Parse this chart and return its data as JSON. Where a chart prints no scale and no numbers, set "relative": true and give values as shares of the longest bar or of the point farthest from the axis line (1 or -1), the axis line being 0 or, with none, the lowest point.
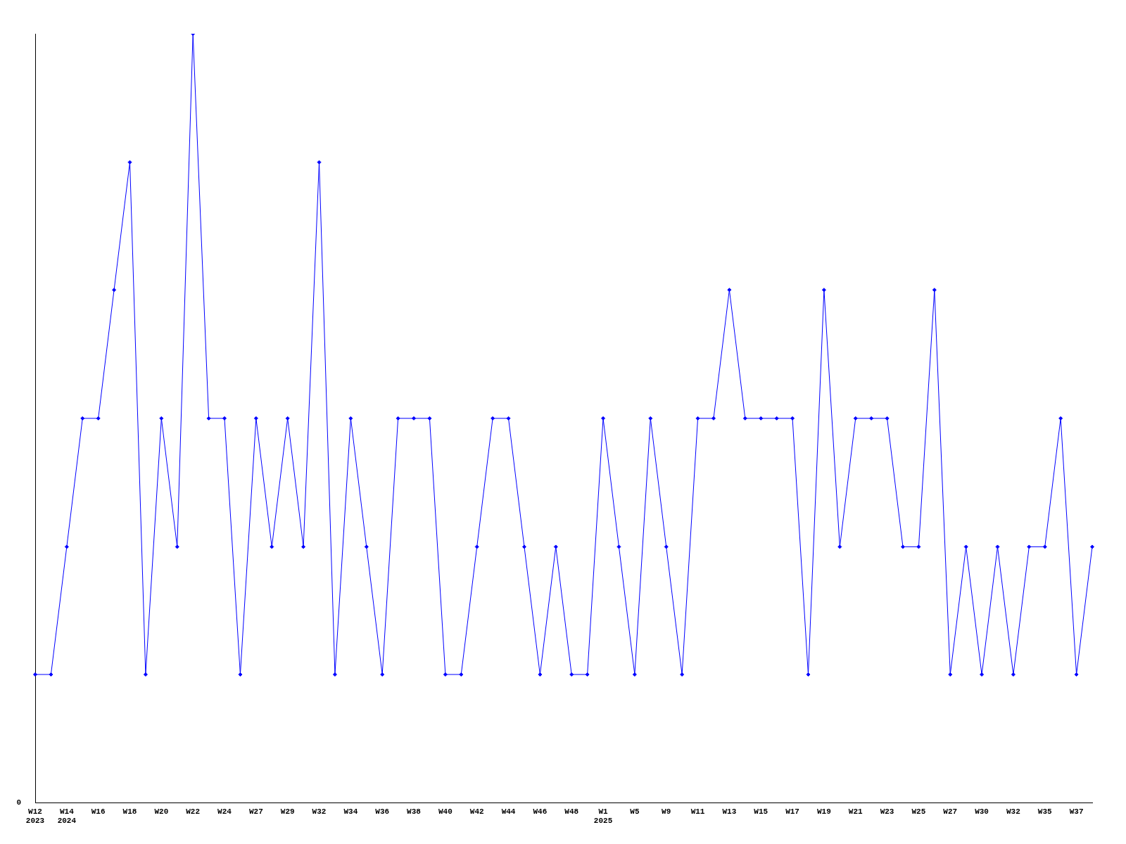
{
  "chart_data": {
    "type": "line",
    "relative": true,
    "categories": [
      "W12\n2023",
      null,
      "W14\n2024",
      null,
      "W16",
      null,
      "W18",
      null,
      "W20",
      null,
      "W22",
      null,
      "W24",
      null,
      "W27",
      null,
      "W29",
      null,
      "W32",
      null,
      "W34",
      null,
      "W36",
      null,
      "W38",
      null,
      "W40",
      null,
      "W42",
      null,
      "W44",
      null,
      "W46",
      null,
      "W48",
      null,
      "W1\n2025",
      null,
      "W5",
      null,
      "W9",
      null,
      "W11",
      null,
      "W13",
      null,
      "W15",
      null,
      "W17",
      null,
      "W19",
      null,
      "W21",
      null,
      "W23",
      null,
      "W25",
      null,
      "W27",
      null,
      "W30",
      null,
      "W32",
      null,
      "W35",
      null,
      "W37",
      null
    ],
    "series": [
      {
        "color": "#0000ff",
        "values": [
          0.167,
          0.167,
          0.333,
          0.5,
          0.5,
          0.667,
          0.833,
          0.167,
          0.5,
          0.333,
          1,
          0.5,
          0.5,
          0.167,
          0.5,
          0.333,
          0.5,
          0.333,
          0.833,
          0.167,
          0.5,
          0.333,
          0.167,
          0.5,
          0.5,
          0.5,
          0.167,
          0.167,
          0.333,
          0.5,
          0.5,
          0.333,
          0.167,
          0.333,
          0.167,
          0.167,
          0.5,
          0.333,
          0.167,
          0.5,
          0.333,
          0.167,
          0.5,
          0.5,
          0.667,
          0.5,
          0.5,
          0.5,
          0.5,
          0.167,
          0.667,
          0.333,
          0.5,
          0.5,
          0.5,
          0.333,
          0.333,
          0.667,
          0.167,
          0.333,
          0.167,
          0.333,
          0.167,
          0.333,
          0.333,
          0.5,
          0.167,
          0.333
        ]
      }
    ],
    "annotations": [
      "0"
    ],
    "marker": "diamond",
    "grid": false,
    "legend": false
  }
}
